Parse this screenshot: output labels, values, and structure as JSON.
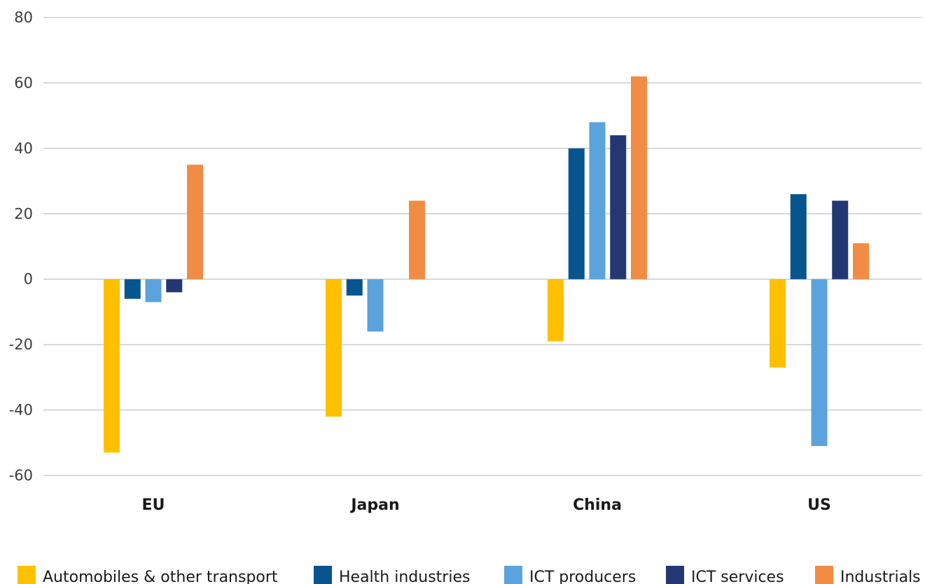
{
  "chart_data": {
    "type": "bar",
    "categories": [
      "EU",
      "Japan",
      "China",
      "US"
    ],
    "series": [
      {
        "name": "Automobiles & other transport",
        "color": "#ffc000",
        "values": [
          -53,
          -42,
          -19,
          -27
        ]
      },
      {
        "name": "Health industries",
        "color": "#08548e",
        "values": [
          -6,
          -5,
          40,
          26
        ]
      },
      {
        "name": "ICT producers",
        "color": "#5ba3dc",
        "values": [
          -7,
          -16,
          48,
          -51
        ]
      },
      {
        "name": "ICT services",
        "color": "#233872",
        "values": [
          -4,
          0,
          44,
          24
        ]
      },
      {
        "name": "Industrials",
        "color": "#f28c45",
        "values": [
          35,
          24,
          62,
          11
        ]
      }
    ],
    "yticks": [
      "80",
      "60",
      "40",
      "20",
      "0",
      "-20",
      "-40",
      "-60"
    ],
    "ylim": [
      -60,
      80
    ],
    "grid": true,
    "legend": "bottom"
  }
}
